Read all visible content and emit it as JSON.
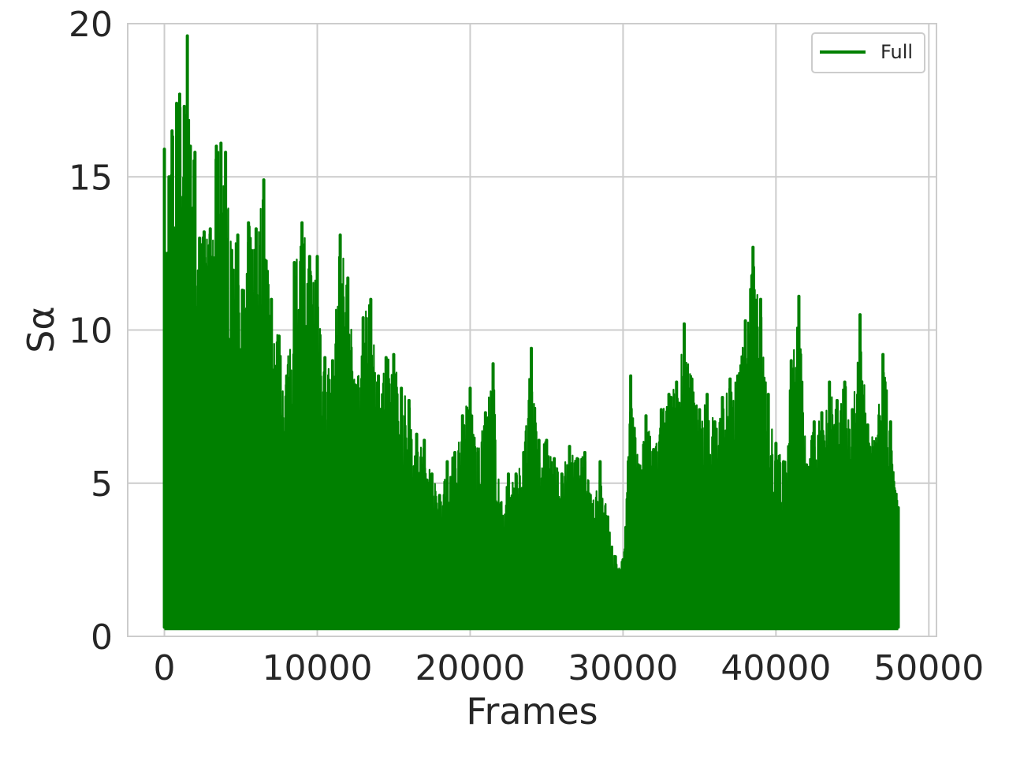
{
  "colors": {
    "series": "#008000",
    "grid": "#cccccc",
    "axes_edge": "#cccccc",
    "text": "#262626",
    "background": "#ffffff"
  },
  "chart_data": {
    "type": "line",
    "title": "",
    "xlabel": "Frames",
    "ylabel": "Sα",
    "xlim": [
      -2400,
      50500
    ],
    "ylim": [
      0,
      20
    ],
    "xticks": [
      0,
      10000,
      20000,
      30000,
      40000,
      50000
    ],
    "xtick_labels": [
      "0",
      "10000",
      "20000",
      "30000",
      "40000",
      "50000"
    ],
    "yticks": [
      0,
      5,
      10,
      15,
      20
    ],
    "ytick_labels": [
      "0",
      "5",
      "10",
      "15",
      "20"
    ],
    "grid": true,
    "legend": {
      "position": "top-right",
      "entries": [
        "Full"
      ]
    },
    "series": [
      {
        "name": "Full",
        "color": "#008000",
        "style": "dense-oscillating-line",
        "x_start": 0,
        "x_end": 48000,
        "baseline": 0.3,
        "x": [
          0,
          100,
          300,
          500,
          800,
          1000,
          1300,
          1500,
          1700,
          2000,
          2300,
          2600,
          3000,
          3400,
          3700,
          4000,
          4400,
          4800,
          5100,
          5500,
          6000,
          6500,
          7000,
          7500,
          8000,
          8500,
          9000,
          9500,
          10000,
          10500,
          11000,
          11500,
          12000,
          12500,
          13000,
          13500,
          14000,
          14500,
          15000,
          15500,
          16000,
          16500,
          17000,
          17500,
          18000,
          18500,
          19000,
          19500,
          20000,
          20500,
          21000,
          21500,
          22000,
          22500,
          23000,
          23500,
          24000,
          24500,
          25000,
          25500,
          26000,
          26500,
          27000,
          27500,
          28000,
          28500,
          29000,
          29500,
          30000,
          30500,
          31000,
          31500,
          32000,
          32500,
          33000,
          33500,
          34000,
          34500,
          35000,
          35500,
          36000,
          36500,
          37000,
          37500,
          38000,
          38500,
          39000,
          39500,
          40000,
          40500,
          41000,
          41500,
          42000,
          42500,
          43000,
          43500,
          44000,
          44500,
          45000,
          45500,
          46000,
          46500,
          47000,
          47500,
          48000
        ],
        "y": [
          15.9,
          12.5,
          15.0,
          16.5,
          17.4,
          17.7,
          17.3,
          19.6,
          16.0,
          15.8,
          13.0,
          13.2,
          13.3,
          16.0,
          16.1,
          15.8,
          12.6,
          13.1,
          11.3,
          13.5,
          13.3,
          14.9,
          11.0,
          9.8,
          8.5,
          12.2,
          13.5,
          12.4,
          12.4,
          9.1,
          9.0,
          13.1,
          11.7,
          8.2,
          10.4,
          11.0,
          8.5,
          9.1,
          9.2,
          8.1,
          7.7,
          6.6,
          6.4,
          5.3,
          4.6,
          5.7,
          6.0,
          7.2,
          8.1,
          6.0,
          7.3,
          8.9,
          4.3,
          5.3,
          5.3,
          6.0,
          9.4,
          6.4,
          6.4,
          5.8,
          5.3,
          6.2,
          5.8,
          6.0,
          4.3,
          5.7,
          3.9,
          2.6,
          2.5,
          8.5,
          5.6,
          7.2,
          6.1,
          7.4,
          7.9,
          8.3,
          10.2,
          8.4,
          7.4,
          7.9,
          7.0,
          7.8,
          8.4,
          8.5,
          10.3,
          12.7,
          11.0,
          7.9,
          6.3,
          5.7,
          9.0,
          11.1,
          5.6,
          7.0,
          7.3,
          8.3,
          7.7,
          8.3,
          7.4,
          10.5,
          6.9,
          6.3,
          9.2,
          7.0,
          4.2
        ]
      }
    ]
  }
}
